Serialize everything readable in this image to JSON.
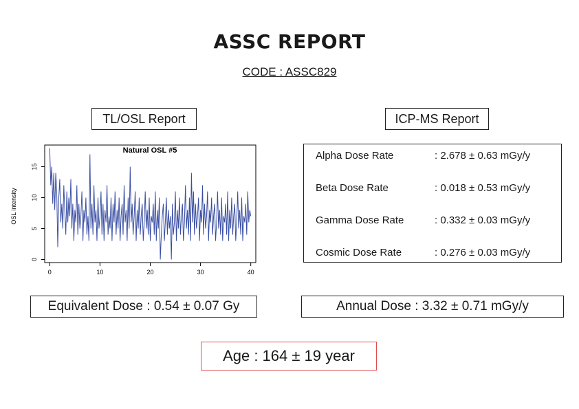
{
  "header": {
    "title": "ASSC REPORT",
    "code": "CODE : ASSC829"
  },
  "tl_osl": {
    "label": "TL/OSL Report"
  },
  "icp_ms": {
    "label": "ICP-MS Report",
    "rows": [
      {
        "name": "Alpha Dose Rate",
        "value": ": 2.678 ± 0.63 mGy/y"
      },
      {
        "name": "Beta Dose Rate",
        "value": ": 0.018 ± 0.53 mGy/y"
      },
      {
        "name": "Gamma Dose Rate",
        "value": ": 0.332 ± 0.03 mGy/y"
      },
      {
        "name": "Cosmic Dose Rate",
        "value": ": 0.276 ± 0.03 mGy/y"
      }
    ]
  },
  "results": {
    "equivalent_dose": "Equivalent Dose : 0.54 ± 0.07 Gy",
    "annual_dose": "Annual Dose : 3.32 ± 0.71 mGy/y",
    "age": "Age : 164 ± 19 year"
  },
  "chart_data": {
    "type": "line",
    "title": "Natural OSL #5",
    "xlabel": "",
    "ylabel": "OSL intensity",
    "xlim": [
      -1,
      41
    ],
    "ylim": [
      -0.5,
      18.5
    ],
    "xticks": [
      "0",
      "10",
      "20",
      "30",
      "40"
    ],
    "yticks": [
      "0",
      "5",
      "10",
      "15"
    ],
    "grid": false,
    "series_color": "#3a4fa3",
    "x": [
      0,
      0.2,
      0.4,
      0.6,
      0.8,
      1,
      1.2,
      1.4,
      1.6,
      1.8,
      2,
      2.2,
      2.4,
      2.6,
      2.8,
      3,
      3.2,
      3.4,
      3.6,
      3.8,
      4,
      4.2,
      4.4,
      4.6,
      4.8,
      5,
      5.2,
      5.4,
      5.6,
      5.8,
      6,
      6.2,
      6.4,
      6.6,
      6.8,
      7,
      7.2,
      7.4,
      7.6,
      7.8,
      8,
      8.2,
      8.4,
      8.6,
      8.8,
      9,
      9.2,
      9.4,
      9.6,
      9.8,
      10,
      10.2,
      10.4,
      10.6,
      10.8,
      11,
      11.2,
      11.4,
      11.6,
      11.8,
      12,
      12.2,
      12.4,
      12.6,
      12.8,
      13,
      13.2,
      13.4,
      13.6,
      13.8,
      14,
      14.2,
      14.4,
      14.6,
      14.8,
      15,
      15.2,
      15.4,
      15.6,
      15.8,
      16,
      16.2,
      16.4,
      16.6,
      16.8,
      17,
      17.2,
      17.4,
      17.6,
      17.8,
      18,
      18.2,
      18.4,
      18.6,
      18.8,
      19,
      19.2,
      19.4,
      19.6,
      19.8,
      20,
      20.2,
      20.4,
      20.6,
      20.8,
      21,
      21.2,
      21.4,
      21.6,
      21.8,
      22,
      22.2,
      22.4,
      22.6,
      22.8,
      23,
      23.2,
      23.4,
      23.6,
      23.8,
      24,
      24.2,
      24.4,
      24.6,
      24.8,
      25,
      25.2,
      25.4,
      25.6,
      25.8,
      26,
      26.2,
      26.4,
      26.6,
      26.8,
      27,
      27.2,
      27.4,
      27.6,
      27.8,
      28,
      28.2,
      28.4,
      28.6,
      28.8,
      29,
      29.2,
      29.4,
      29.6,
      29.8,
      30,
      30.2,
      30.4,
      30.6,
      30.8,
      31,
      31.2,
      31.4,
      31.6,
      31.8,
      32,
      32.2,
      32.4,
      32.6,
      32.8,
      33,
      33.2,
      33.4,
      33.6,
      33.8,
      34,
      34.2,
      34.4,
      34.6,
      34.8,
      35,
      35.2,
      35.4,
      35.6,
      35.8,
      36,
      36.2,
      36.4,
      36.6,
      36.8,
      37,
      37.2,
      37.4,
      37.6,
      37.8,
      38,
      38.2,
      38.4,
      38.6,
      38.8,
      39,
      39.2,
      39.4,
      39.6,
      39.8,
      40
    ],
    "y": [
      18,
      12,
      15,
      9,
      14,
      8,
      14,
      11,
      2,
      10,
      13,
      6,
      9,
      5,
      12,
      8,
      4,
      11,
      6,
      10,
      7,
      13,
      5,
      9,
      3,
      8,
      6,
      12,
      4,
      9,
      5,
      7,
      11,
      3,
      8,
      6,
      10,
      4,
      7,
      3,
      17,
      5,
      9,
      4,
      12,
      6,
      8,
      3,
      10,
      5,
      7,
      11,
      4,
      9,
      3,
      8,
      6,
      12,
      4,
      7,
      5,
      10,
      3,
      9,
      6,
      11,
      4,
      8,
      5,
      10,
      3,
      7,
      9,
      4,
      12,
      6,
      8,
      3,
      10,
      5,
      15,
      6,
      9,
      4,
      7,
      11,
      3,
      8,
      5,
      10,
      4,
      7,
      9,
      3,
      6,
      11,
      5,
      8,
      4,
      10,
      3,
      7,
      6,
      9,
      4,
      11,
      3,
      8,
      5,
      10,
      0,
      4,
      7,
      9,
      3,
      6,
      10,
      4,
      8,
      5,
      7,
      0,
      9,
      4,
      6,
      11,
      3,
      8,
      5,
      10,
      4,
      7,
      9,
      3,
      6,
      12,
      5,
      8,
      4,
      10,
      3,
      14,
      6,
      11,
      4,
      9,
      5,
      7,
      10,
      3,
      8,
      6,
      12,
      4,
      9,
      5,
      7,
      11,
      3,
      8,
      6,
      10,
      4,
      7,
      9,
      3,
      6,
      11,
      5,
      8,
      4,
      10,
      3,
      7,
      6,
      9,
      4,
      11,
      3,
      8,
      5,
      10,
      4,
      7,
      9,
      3,
      6,
      11,
      5,
      8,
      4,
      10,
      3,
      7,
      6,
      9,
      4,
      11,
      6,
      8,
      7
    ]
  }
}
